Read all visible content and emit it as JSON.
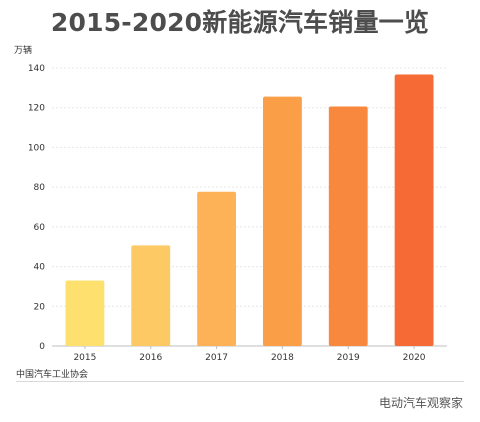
{
  "page": {
    "title": "2015-2020新能源汽车销量一览",
    "source": "中国汽车工业协会",
    "watermark": "电动汽车观察家"
  },
  "chart_data": {
    "type": "bar",
    "title": "2015-2020新能源汽车销量一览",
    "ylabel": "万辆",
    "xlabel": "",
    "categories": [
      "2015",
      "2016",
      "2017",
      "2018",
      "2019",
      "2020"
    ],
    "values": [
      33,
      50.7,
      77.7,
      125.6,
      120.6,
      136.7
    ],
    "ylim": [
      0,
      140
    ],
    "yticks": [
      0,
      20,
      40,
      60,
      80,
      100,
      120,
      140
    ],
    "grid": true,
    "bar_colors": [
      "#FDE06D",
      "#FDC964",
      "#FDB257",
      "#FB9E48",
      "#F9883F",
      "#F66A35"
    ]
  }
}
